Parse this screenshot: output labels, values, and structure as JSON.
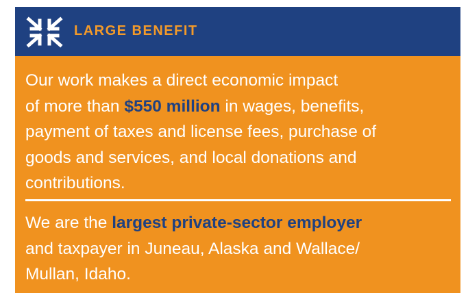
{
  "header": {
    "title": "LARGE BENEFIT"
  },
  "paragraphs": [
    [
      [
        {
          "text": "Our work makes a direct economic impact"
        }
      ],
      [
        {
          "text": "of more than "
        },
        {
          "text": "$550 million",
          "highlight": true
        },
        {
          "text": " in wages, benefits,"
        }
      ],
      [
        {
          "text": "payment of taxes and license fees, purchase of"
        }
      ],
      [
        {
          "text": "goods and services, and local donations and"
        }
      ],
      [
        {
          "text": "contributions."
        }
      ]
    ],
    [
      [
        {
          "text": "We are the "
        },
        {
          "text": "largest private-sector employer",
          "highlight": true
        }
      ],
      [
        {
          "text": "and taxpayer in Juneau, Alaska and Wallace/"
        }
      ],
      [
        {
          "text": "Mullan, Idaho."
        }
      ]
    ]
  ]
}
